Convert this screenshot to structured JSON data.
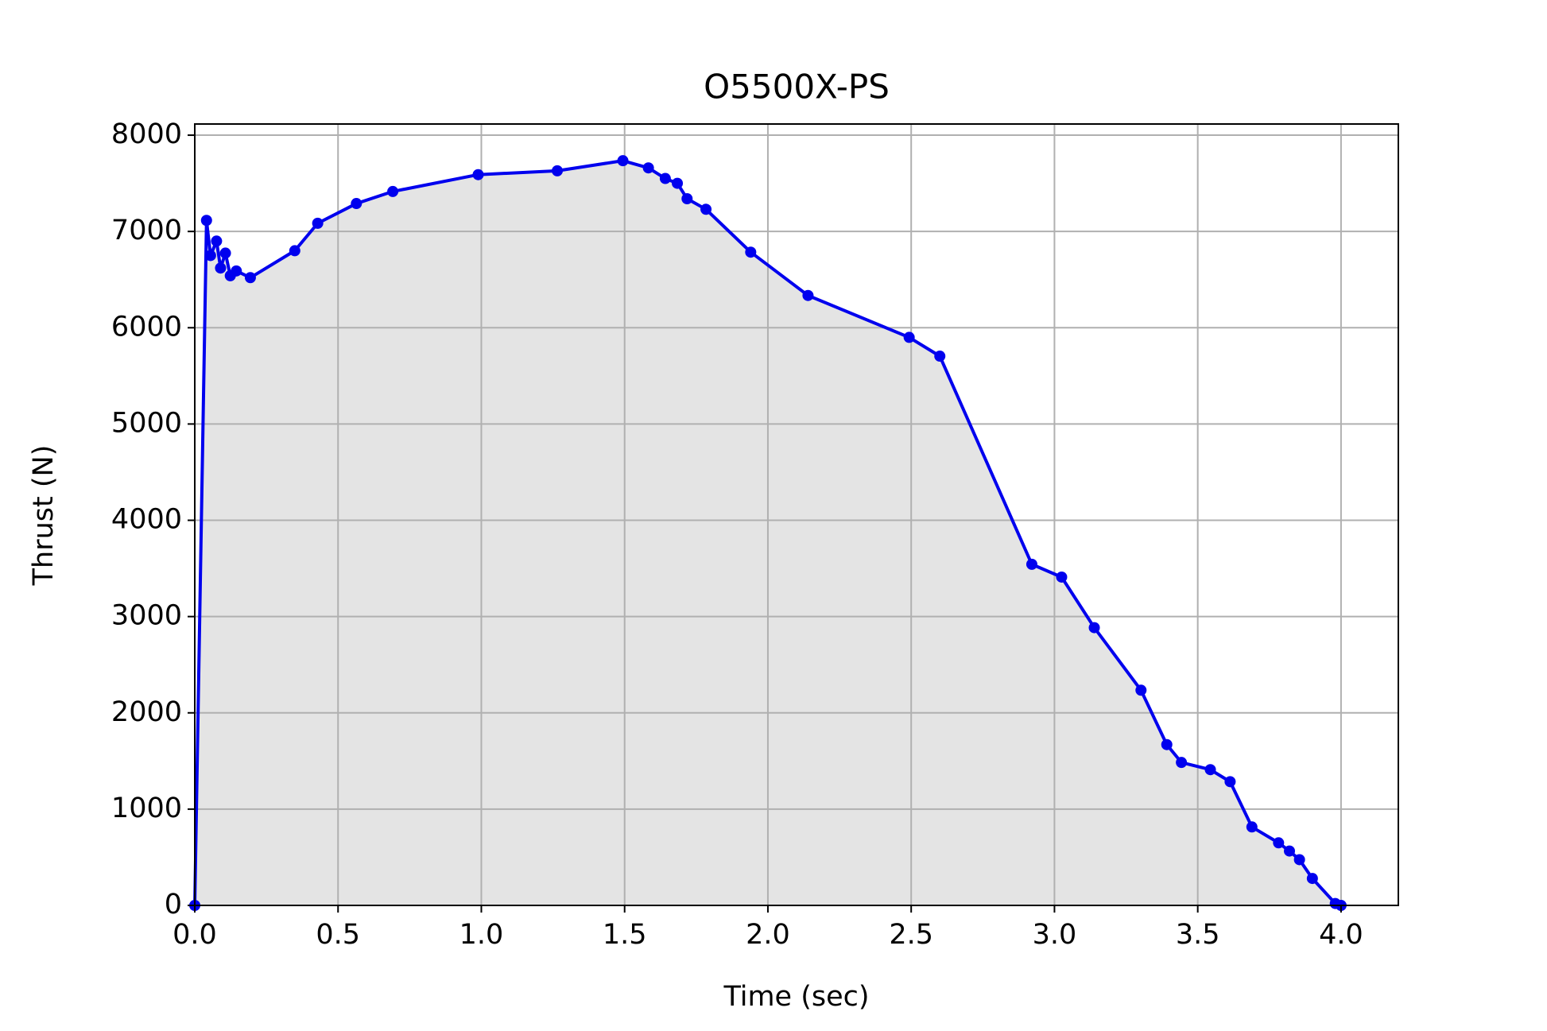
{
  "chart_data": {
    "type": "line",
    "title": "O5500X-PS",
    "x_label": "Time (sec)",
    "y_label": "Thrust (N)",
    "x": [
      0,
      0.041,
      0.055,
      0.076,
      0.09,
      0.107,
      0.124,
      0.145,
      0.194,
      0.349,
      0.429,
      0.564,
      0.691,
      0.989,
      1.265,
      1.494,
      1.583,
      1.642,
      1.684,
      1.718,
      1.784,
      1.94,
      2.14,
      2.493,
      2.6,
      2.921,
      3.025,
      3.139,
      3.302,
      3.392,
      3.443,
      3.544,
      3.613,
      3.689,
      3.782,
      3.82,
      3.855,
      3.9,
      3.98,
      4.0
    ],
    "series": [
      {
        "name": "Thrust",
        "color": "#0000ee",
        "fill": "#e4e4e4",
        "values": [
          0,
          7115,
          6750,
          6900,
          6620,
          6775,
          6540,
          6590,
          6520,
          6800,
          7085,
          7290,
          7415,
          7590,
          7630,
          7735,
          7660,
          7550,
          7500,
          7340,
          7230,
          6785,
          6335,
          5900,
          5705,
          3543,
          3410,
          2885,
          2235,
          1670,
          1485,
          1410,
          1285,
          815,
          650,
          565,
          475,
          280,
          20,
          0
        ]
      }
    ],
    "xlim": [
      0,
      4.2
    ],
    "ylim": [
      0,
      8116
    ],
    "xticks": [
      {
        "value": 0,
        "label": "0.0"
      },
      0.5,
      {
        "value": 1,
        "label": "1.0"
      },
      1.5,
      {
        "value": 2,
        "label": "2.0"
      },
      2.5,
      {
        "value": 3,
        "label": "3.0"
      },
      3.5,
      {
        "value": 4,
        "label": "4.0"
      }
    ],
    "yticks": [
      0,
      1000,
      2000,
      3000,
      4000,
      5000,
      6000,
      7000,
      8000
    ],
    "grid": true
  }
}
